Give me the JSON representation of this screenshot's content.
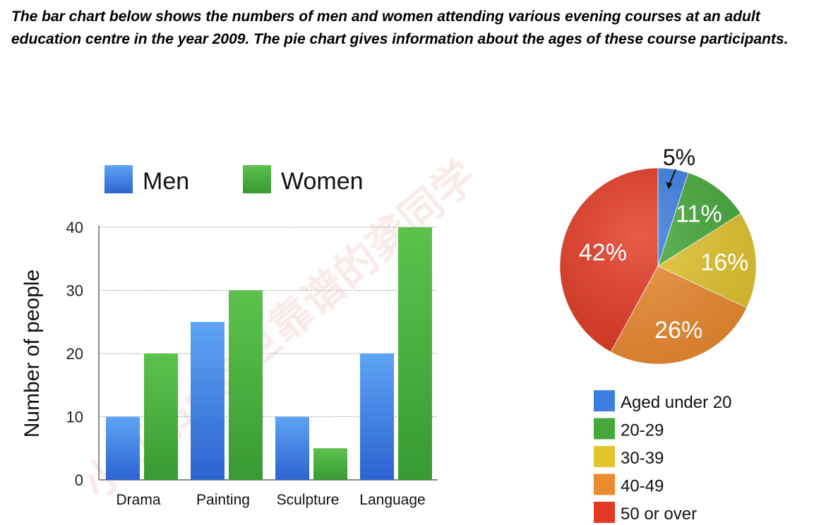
{
  "prompt_text": "The bar chart below shows the numbers of men and women attending various evening courses at an adult education centre in the year 2009. The pie chart gives information about the ages of these course participants.",
  "chart_data": [
    {
      "type": "bar",
      "title": "",
      "xlabel": "",
      "ylabel": "Number of people",
      "categories": [
        "Drama",
        "Painting",
        "Sculpture",
        "Language"
      ],
      "ylim": [
        0,
        40
      ],
      "yticks": [
        0,
        10,
        20,
        30,
        40
      ],
      "grid": true,
      "legend_position": "top",
      "series": [
        {
          "name": "Men",
          "values": [
            10,
            25,
            10,
            20
          ],
          "color": "#3d7fe0"
        },
        {
          "name": "Women",
          "values": [
            20,
            30,
            5,
            40
          ],
          "color": "#48ac3c"
        }
      ]
    },
    {
      "type": "pie",
      "title": "",
      "legend_position": "bottom",
      "slices": [
        {
          "label": "Aged under 20",
          "value": 5,
          "display": "5%",
          "color": "#3b7de0"
        },
        {
          "label": "20-29",
          "value": 11,
          "display": "11%",
          "color": "#46a83a"
        },
        {
          "label": "30-39",
          "value": 16,
          "display": "16%",
          "color": "#e2c52e"
        },
        {
          "label": "40-49",
          "value": 26,
          "display": "26%",
          "color": "#ec8a30"
        },
        {
          "label": "50 or over",
          "value": 42,
          "display": "42%",
          "color": "#e23a23"
        }
      ]
    }
  ],
  "watermark_text": "小红书: @巨靠谱的龚同学"
}
